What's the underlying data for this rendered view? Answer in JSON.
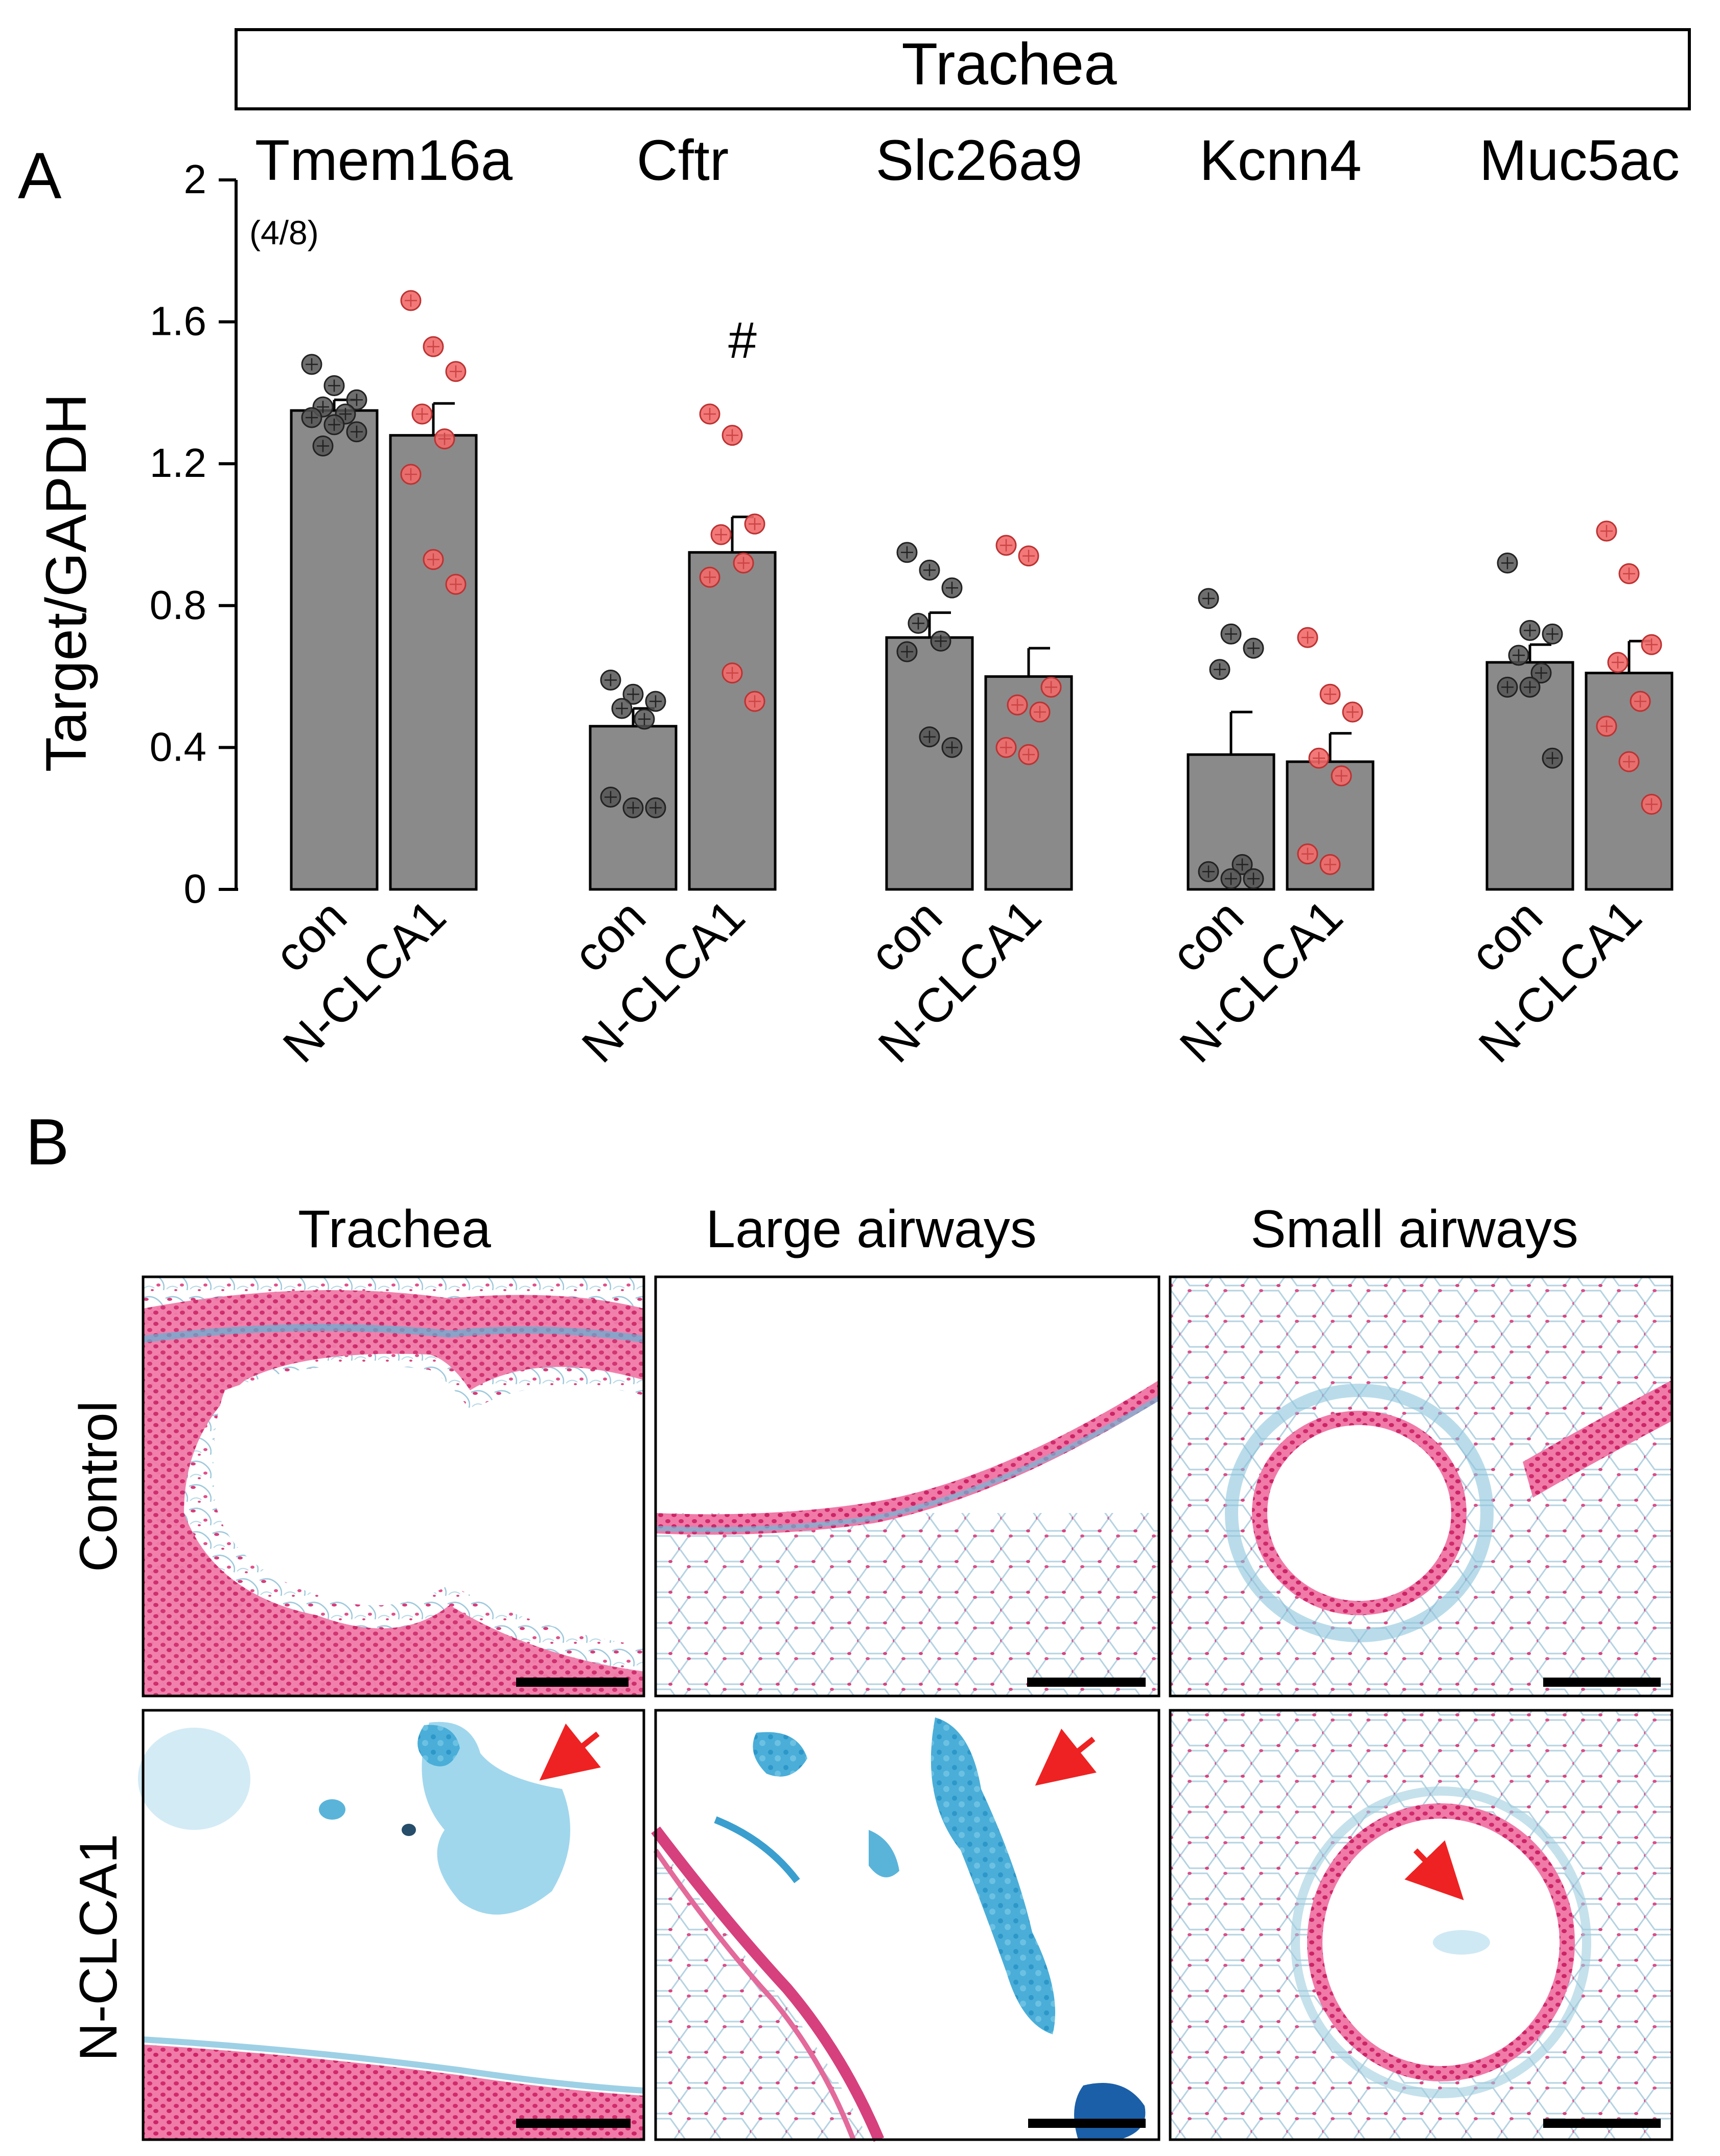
{
  "header": {
    "title": "Trachea"
  },
  "panel_labels": {
    "a": "A",
    "b": "B"
  },
  "annotations": {
    "n_note": "(4/8)",
    "significance": "#"
  },
  "colors": {
    "bar": "#8a8a8a",
    "con_dot": "#555555",
    "nclca1_dot": "#f26a6a",
    "arrow": "#ee2222",
    "scalebar": "#000000"
  },
  "chart_data": {
    "type": "bar",
    "ylabel": "Target/GAPDH",
    "ylim": [
      0,
      2
    ],
    "yticks": [
      0,
      0.4,
      0.8,
      1.2,
      1.6,
      2
    ],
    "ytick_labels": [
      "0",
      "0.4",
      "0.8",
      "1.2",
      "1.6",
      "2"
    ],
    "groups": [
      {
        "name": "Tmem16a",
        "series": [
          {
            "label": "con",
            "mean": 1.35,
            "sem": 0.03,
            "points": [
              1.48,
              1.42,
              1.38,
              1.36,
              1.34,
              1.33,
              1.31,
              1.29,
              1.25
            ]
          },
          {
            "label": "N-CLCA1",
            "mean": 1.28,
            "sem": 0.09,
            "points": [
              1.66,
              1.53,
              1.46,
              1.34,
              1.27,
              1.17,
              0.93,
              0.86
            ]
          }
        ]
      },
      {
        "name": "Cftr",
        "series": [
          {
            "label": "con",
            "mean": 0.46,
            "sem": 0.05,
            "points": [
              0.59,
              0.55,
              0.53,
              0.51,
              0.48,
              0.26,
              0.23,
              0.23
            ]
          },
          {
            "label": "N-CLCA1",
            "mean": 0.95,
            "sem": 0.1,
            "points": [
              1.34,
              1.28,
              1.03,
              1.0,
              0.92,
              0.88,
              0.61,
              0.53
            ]
          }
        ]
      },
      {
        "name": "Slc26a9",
        "series": [
          {
            "label": "con",
            "mean": 0.71,
            "sem": 0.07,
            "points": [
              0.95,
              0.9,
              0.85,
              0.75,
              0.7,
              0.67,
              0.43,
              0.4
            ]
          },
          {
            "label": "N-CLCA1",
            "mean": 0.6,
            "sem": 0.08,
            "points": [
              0.97,
              0.94,
              0.57,
              0.52,
              0.5,
              0.4,
              0.38
            ]
          }
        ]
      },
      {
        "name": "Kcnn4",
        "series": [
          {
            "label": "con",
            "mean": 0.38,
            "sem": 0.12,
            "points": [
              0.82,
              0.72,
              0.68,
              0.62,
              0.07,
              0.05,
              0.03,
              0.03
            ]
          },
          {
            "label": "N-CLCA1",
            "mean": 0.36,
            "sem": 0.08,
            "points": [
              0.71,
              0.55,
              0.5,
              0.37,
              0.32,
              0.1,
              0.07
            ]
          }
        ]
      },
      {
        "name": "Muc5ac",
        "series": [
          {
            "label": "con",
            "mean": 0.64,
            "sem": 0.05,
            "points": [
              0.92,
              0.73,
              0.72,
              0.66,
              0.61,
              0.57,
              0.57,
              0.37
            ]
          },
          {
            "label": "N-CLCA1",
            "mean": 0.61,
            "sem": 0.09,
            "points": [
              1.01,
              0.89,
              0.69,
              0.64,
              0.53,
              0.46,
              0.36,
              0.24
            ]
          }
        ]
      }
    ]
  },
  "histology": {
    "columns": [
      "Trachea",
      "Large airways",
      "Small airways"
    ],
    "rows": [
      "Control",
      "N-CLCA1"
    ]
  }
}
